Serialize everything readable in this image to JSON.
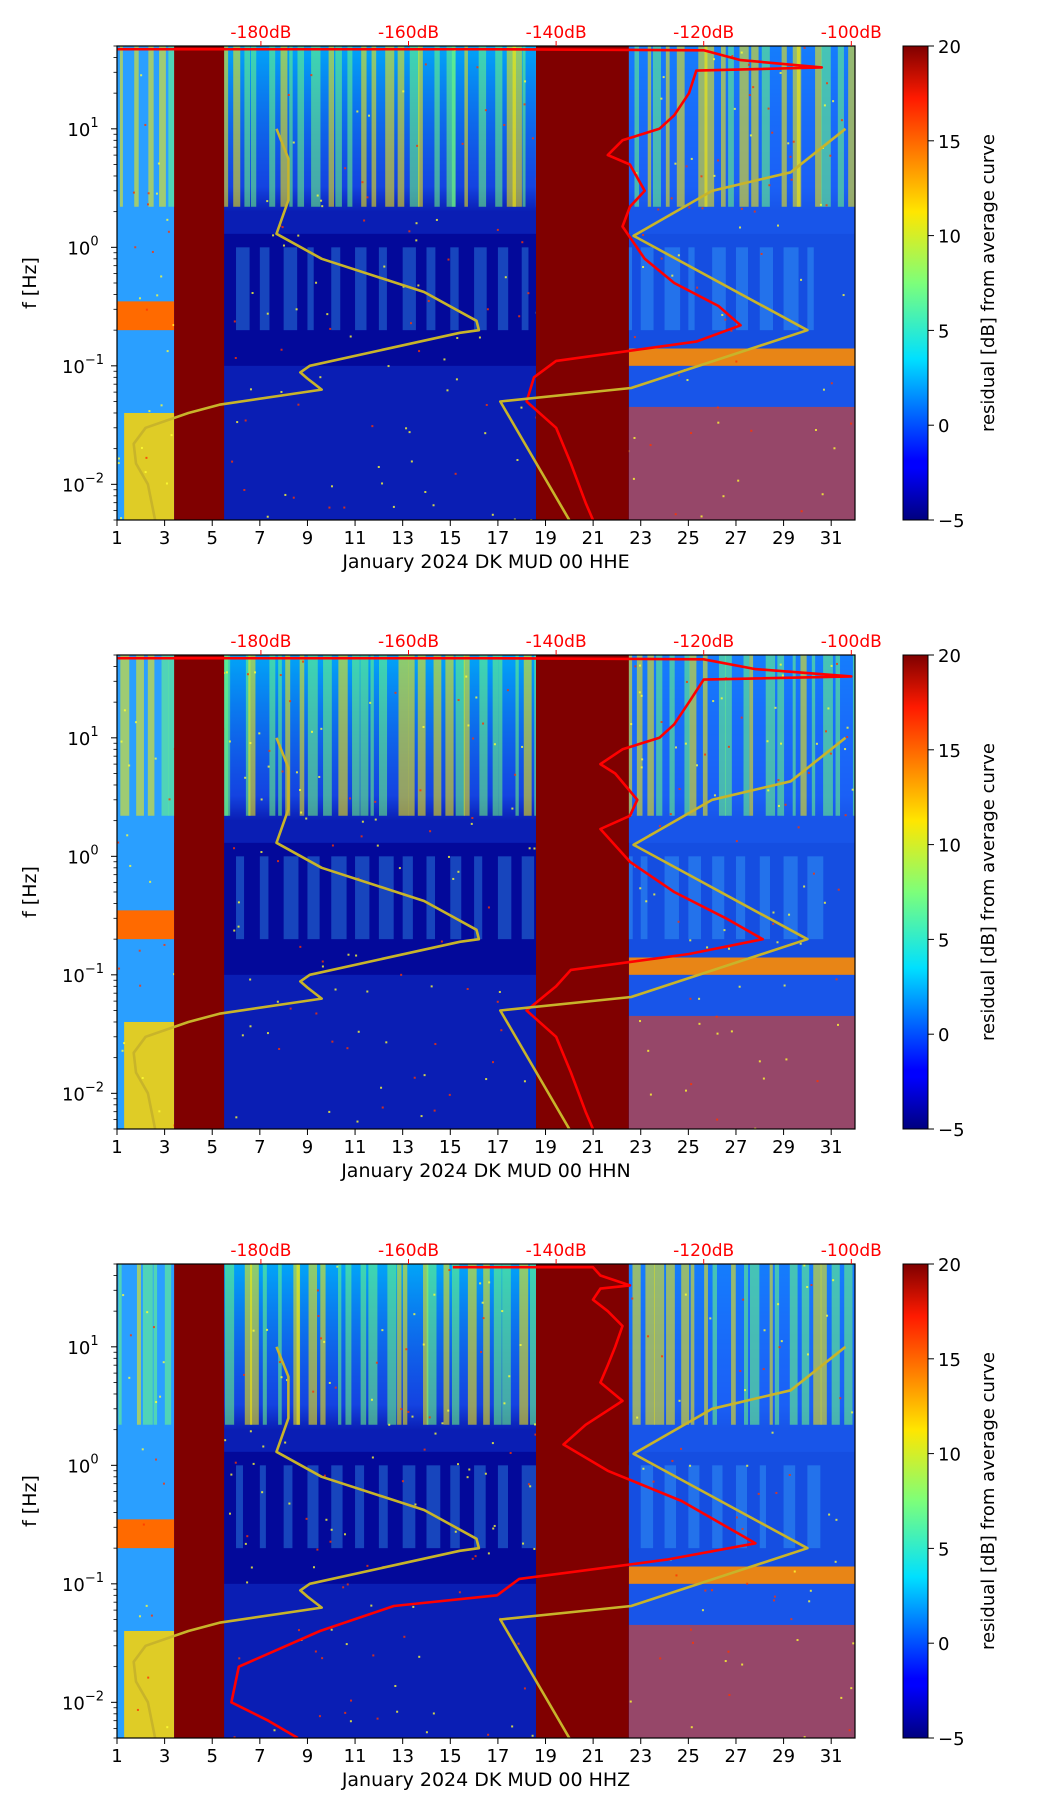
{
  "chart_data": [
    {
      "type": "heatmap",
      "xlabel": "January 2024 DK MUD 00 HHE",
      "ylabel": "f [Hz]",
      "x_ticks": [
        1,
        3,
        5,
        7,
        9,
        11,
        13,
        15,
        17,
        19,
        21,
        23,
        25,
        27,
        29,
        31
      ],
      "x_range": [
        1,
        32
      ],
      "y_scale": "log",
      "y_range": [
        0.005,
        50
      ],
      "y_ticks": [
        {
          "value": 0.01,
          "base": "10",
          "exp": "−2"
        },
        {
          "value": 0.1,
          "base": "10",
          "exp": "−1"
        },
        {
          "value": 1,
          "base": "10",
          "exp": "0"
        },
        {
          "value": 10,
          "base": "10",
          "exp": "1"
        }
      ],
      "top_axis_labels": [
        "-180dB",
        "-160dB",
        "-140dB",
        "-120dB",
        "-100dB"
      ],
      "colorbar": {
        "label": "residual [dB] from average curve",
        "ticks": [
          -5,
          0,
          5,
          10,
          15,
          20
        ],
        "range": [
          -5,
          20
        ]
      },
      "saturated_bands": [
        [
          3.4,
          5.5
        ],
        [
          18.6,
          22.5
        ]
      ],
      "series": [
        {
          "name": "average PSD (top dB axis)",
          "color": "#ff0000",
          "points": [
            [
              -201,
              47
            ],
            [
              -150,
              47
            ],
            [
              -120,
              46
            ],
            [
              -115,
              38
            ],
            [
              -104,
              33
            ],
            [
              -121,
              31
            ],
            [
              -122,
              20
            ],
            [
              -124,
              13
            ],
            [
              -126,
              10
            ],
            [
              -131,
              8
            ],
            [
              -133,
              6
            ],
            [
              -130,
              5
            ],
            [
              -128,
              3
            ],
            [
              -130,
              2.2
            ],
            [
              -131,
              1.5
            ],
            [
              -128,
              0.8
            ],
            [
              -124,
              0.5
            ],
            [
              -118,
              0.32
            ],
            [
              -115,
              0.22
            ],
            [
              -121,
              0.16
            ],
            [
              -140,
              0.11
            ],
            [
              -143,
              0.08
            ],
            [
              -144,
              0.05
            ],
            [
              -140,
              0.03
            ],
            [
              -138,
              0.015
            ],
            [
              -136,
              0.007
            ],
            [
              -135,
              0.005
            ]
          ]
        },
        {
          "name": "overlay curve (day axis)",
          "color": "#c8b42a",
          "points": [
            [
              2.6,
              0.005
            ],
            [
              2.3,
              0.01
            ],
            [
              1.8,
              0.015
            ],
            [
              1.7,
              0.022
            ],
            [
              2.2,
              0.03
            ],
            [
              4,
              0.04
            ],
            [
              5.3,
              0.047
            ],
            [
              9.6,
              0.063
            ],
            [
              9,
              0.078
            ],
            [
              8.7,
              0.088
            ],
            [
              9.1,
              0.1
            ],
            [
              15.4,
              0.19
            ],
            [
              16.2,
              0.2
            ],
            [
              16.1,
              0.24
            ],
            [
              13.9,
              0.42
            ],
            [
              9.6,
              0.8
            ],
            [
              7.7,
              1.3
            ],
            [
              8.2,
              2.5
            ],
            [
              8.2,
              5.6
            ],
            [
              7.7,
              10
            ]
          ]
        },
        {
          "name": "overlay curve (day axis)",
          "color": "#c8b42a",
          "points": [
            [
              20,
              0.005
            ],
            [
              17.1,
              0.05
            ],
            [
              22.6,
              0.065
            ],
            [
              30,
              0.2
            ],
            [
              22.7,
              1.25
            ],
            [
              26,
              3
            ],
            [
              29.3,
              4.3
            ],
            [
              31.6,
              10
            ]
          ]
        }
      ]
    },
    {
      "type": "heatmap",
      "xlabel": "January 2024 DK MUD 00 HHN",
      "ylabel": "f [Hz]",
      "x_ticks": [
        1,
        3,
        5,
        7,
        9,
        11,
        13,
        15,
        17,
        19,
        21,
        23,
        25,
        27,
        29,
        31
      ],
      "x_range": [
        1,
        32
      ],
      "y_scale": "log",
      "y_range": [
        0.005,
        50
      ],
      "y_ticks": [
        {
          "value": 0.01,
          "base": "10",
          "exp": "−2"
        },
        {
          "value": 0.1,
          "base": "10",
          "exp": "−1"
        },
        {
          "value": 1,
          "base": "10",
          "exp": "0"
        },
        {
          "value": 10,
          "base": "10",
          "exp": "1"
        }
      ],
      "top_axis_labels": [
        "-180dB",
        "-160dB",
        "-140dB",
        "-120dB",
        "-100dB"
      ],
      "colorbar": {
        "label": "residual [dB] from average curve",
        "ticks": [
          -5,
          0,
          5,
          10,
          15,
          20
        ],
        "range": [
          -5,
          20
        ]
      },
      "saturated_bands": [
        [
          3.4,
          5.5
        ],
        [
          18.6,
          22.5
        ]
      ],
      "series": [
        {
          "name": "average PSD (top dB axis)",
          "color": "#ff0000",
          "points": [
            [
              -201,
              47
            ],
            [
              -150,
              47
            ],
            [
              -120,
              46
            ],
            [
              -113,
              38
            ],
            [
              -100,
              33
            ],
            [
              -120,
              31
            ],
            [
              -122,
              20
            ],
            [
              -124,
              13
            ],
            [
              -126,
              10
            ],
            [
              -131,
              8
            ],
            [
              -134,
              6
            ],
            [
              -132,
              5
            ],
            [
              -129,
              3
            ],
            [
              -130,
              2.2
            ],
            [
              -134,
              1.7
            ],
            [
              -130,
              0.9
            ],
            [
              -124,
              0.5
            ],
            [
              -117,
              0.3
            ],
            [
              -112,
              0.2
            ],
            [
              -122,
              0.15
            ],
            [
              -138,
              0.11
            ],
            [
              -140,
              0.08
            ],
            [
              -144,
              0.05
            ],
            [
              -140,
              0.03
            ],
            [
              -138,
              0.015
            ],
            [
              -136,
              0.007
            ],
            [
              -135,
              0.005
            ]
          ]
        },
        {
          "name": "overlay curve (day axis)",
          "color": "#c8b42a",
          "points": [
            [
              2.6,
              0.005
            ],
            [
              2.3,
              0.01
            ],
            [
              1.8,
              0.015
            ],
            [
              1.7,
              0.022
            ],
            [
              2.2,
              0.03
            ],
            [
              4,
              0.04
            ],
            [
              5.3,
              0.047
            ],
            [
              9.6,
              0.063
            ],
            [
              9,
              0.078
            ],
            [
              8.7,
              0.088
            ],
            [
              9.1,
              0.1
            ],
            [
              15.4,
              0.19
            ],
            [
              16.2,
              0.2
            ],
            [
              16.1,
              0.24
            ],
            [
              13.9,
              0.42
            ],
            [
              9.6,
              0.8
            ],
            [
              7.7,
              1.3
            ],
            [
              8.2,
              2.5
            ],
            [
              8.2,
              5.6
            ],
            [
              7.7,
              10
            ]
          ]
        },
        {
          "name": "overlay curve (day axis)",
          "color": "#c8b42a",
          "points": [
            [
              20,
              0.005
            ],
            [
              17.1,
              0.05
            ],
            [
              22.6,
              0.065
            ],
            [
              30,
              0.2
            ],
            [
              22.7,
              1.25
            ],
            [
              26,
              3
            ],
            [
              29.3,
              4.3
            ],
            [
              31.6,
              10
            ]
          ]
        }
      ]
    },
    {
      "type": "heatmap",
      "xlabel": "January 2024 DK MUD 00 HHZ",
      "ylabel": "f [Hz]",
      "x_ticks": [
        1,
        3,
        5,
        7,
        9,
        11,
        13,
        15,
        17,
        19,
        21,
        23,
        25,
        27,
        29,
        31
      ],
      "x_range": [
        1,
        32
      ],
      "y_scale": "log",
      "y_range": [
        0.005,
        50
      ],
      "y_ticks": [
        {
          "value": 0.01,
          "base": "10",
          "exp": "−2"
        },
        {
          "value": 0.1,
          "base": "10",
          "exp": "−1"
        },
        {
          "value": 1,
          "base": "10",
          "exp": "0"
        },
        {
          "value": 10,
          "base": "10",
          "exp": "1"
        }
      ],
      "top_axis_labels": [
        "-180dB",
        "-160dB",
        "-140dB",
        "-120dB",
        "-100dB"
      ],
      "colorbar": {
        "label": "residual [dB] from average curve",
        "ticks": [
          -5,
          0,
          5,
          10,
          15,
          20
        ],
        "range": [
          -5,
          20
        ]
      },
      "saturated_bands": [
        [
          3.4,
          5.5
        ],
        [
          18.6,
          22.5
        ]
      ],
      "series": [
        {
          "name": "average PSD (top dB axis)",
          "color": "#ff0000",
          "points": [
            [
              -154,
              47
            ],
            [
              -135,
              47
            ],
            [
              -134,
              40
            ],
            [
              -130,
              33
            ],
            [
              -134,
              31
            ],
            [
              -135,
              25
            ],
            [
              -133,
              20
            ],
            [
              -131,
              15
            ],
            [
              -132,
              10
            ],
            [
              -133,
              7
            ],
            [
              -134,
              5
            ],
            [
              -131,
              3.5
            ],
            [
              -136,
              2.2
            ],
            [
              -139,
              1.5
            ],
            [
              -133,
              0.9
            ],
            [
              -123,
              0.5
            ],
            [
              -113,
              0.22
            ],
            [
              -125,
              0.16
            ],
            [
              -145,
              0.11
            ],
            [
              -148,
              0.08
            ],
            [
              -162,
              0.065
            ],
            [
              -172,
              0.04
            ],
            [
              -183,
              0.02
            ],
            [
              -184,
              0.01
            ],
            [
              -179,
              0.007
            ],
            [
              -175,
              0.005
            ]
          ]
        },
        {
          "name": "overlay curve (day axis)",
          "color": "#c8b42a",
          "points": [
            [
              2.6,
              0.005
            ],
            [
              2.3,
              0.01
            ],
            [
              1.8,
              0.015
            ],
            [
              1.7,
              0.022
            ],
            [
              2.2,
              0.03
            ],
            [
              4,
              0.04
            ],
            [
              5.3,
              0.047
            ],
            [
              9.6,
              0.063
            ],
            [
              9,
              0.078
            ],
            [
              8.7,
              0.088
            ],
            [
              9.1,
              0.1
            ],
            [
              15.4,
              0.19
            ],
            [
              16.2,
              0.2
            ],
            [
              16.1,
              0.24
            ],
            [
              13.9,
              0.42
            ],
            [
              9.6,
              0.8
            ],
            [
              7.7,
              1.3
            ],
            [
              8.2,
              2.5
            ],
            [
              8.2,
              5.6
            ],
            [
              7.7,
              10
            ]
          ]
        },
        {
          "name": "overlay curve (day axis)",
          "color": "#c8b42a",
          "points": [
            [
              20,
              0.005
            ],
            [
              17.1,
              0.05
            ],
            [
              22.6,
              0.065
            ],
            [
              30,
              0.2
            ],
            [
              22.7,
              1.25
            ],
            [
              26,
              3
            ],
            [
              29.3,
              4.3
            ],
            [
              31.6,
              10
            ]
          ]
        }
      ]
    }
  ]
}
